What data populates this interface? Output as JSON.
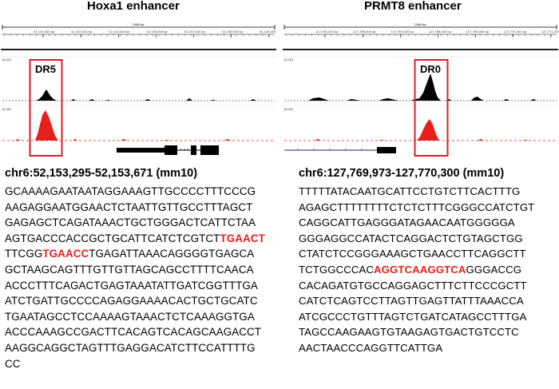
{
  "left": {
    "title": "Hoxa1 enhancer",
    "scale": "7,664 bp",
    "ticks": [
      "52,153,000 bp",
      "52,154,000 bp",
      "52,155,000 bp",
      "52,156,000 bp",
      "52,157,000 bp",
      "52,158,000 bp",
      "52,159,000 bp"
    ],
    "range_label": "[0-10]",
    "box_label": "DR5",
    "locus": "chr6:52,153,295-52,153,671 (mm10)",
    "lines": [
      "GCAAAAGAATAATAGGAAAGTTGCCCCTTTCCCG",
      "AAGAGGAATGGAACTCTAATTGTTGCCTTTAGCT",
      "GAGAGCTCAGATAAACTGCTGGGACTCATTCTAA",
      {
        "before": "AGTGACCCACCGCTGCATTCATCTCGTCT",
        "motif": "TGAACT",
        "after": ""
      },
      {
        "before": "TTCGG",
        "motif": "TGAACC",
        "after": "TGAGATTAAACAGGGGTGAGCA"
      },
      "GCTAAGCAGTTTGTTGTTAGCAGCCTTTTCAACA",
      "ACCCTTTCAGACTGAGTAAATATTGATCGGTTTGA",
      "ATCTGATTGCCCCAGAGGAAAACACTGCTGCATC",
      "TGAATAGCCTCCAAAAGTAAACTCTCAAAGGTGA",
      "ACCCAAAGCCGACTTCACAGTCACAGCAAGACCT",
      "AAGGCAGGCTAGTTTGAGGACATCTTCCATTTTG",
      "CC"
    ]
  },
  "right": {
    "title": "PRMT8 enhancer",
    "scale": "7,664 bp",
    "ticks": [
      "127,765,000 bp",
      "127,766,000 bp",
      "127,767,000 bp",
      "127,768,000 bp",
      "127,769,000 bp",
      "127,770,000 bp",
      "127,771,000 bp"
    ],
    "range_label": "[0-10]",
    "box_label": "DR0",
    "locus": "chr6:127,769,973-127,770,300 (mm10)",
    "lines": [
      "TTTTTATACAATGCATTCCTGTCTTCACTTTG",
      "AGAGCTTTTTTTTCTCTCTTTCGGGCCATCTGT",
      "CAGGCATTGAGGGATAGAACAATGGGGGA",
      "GGGAGGCCATACTCAGGACTCTGTAGCTGG",
      "CTATCTCCGGGAAAGCTGAACCTTCAGGCTT",
      {
        "before": "TCTGGCCCAC",
        "motif": "AGGTCAAGGTCA",
        "after": "GGGACCG"
      },
      "CACAGATGTGCCAGGAGCTTTCTTCCCGCTT",
      "CATCTCAGTCCTTAGTTGAGTTATTTAAACCA",
      "ATCGCCCTGTTTAGTCTGATCATAGCCTTTGA",
      "TAGCCAAGAAGTGTAAGAGTGACTGTCCTC",
      "AACTAACCCAGGTTCATTGA"
    ]
  },
  "colors": {
    "track_black": "#000000",
    "track_red": "#e8201c",
    "box": "#d81f26",
    "motif": "#e8201c"
  }
}
